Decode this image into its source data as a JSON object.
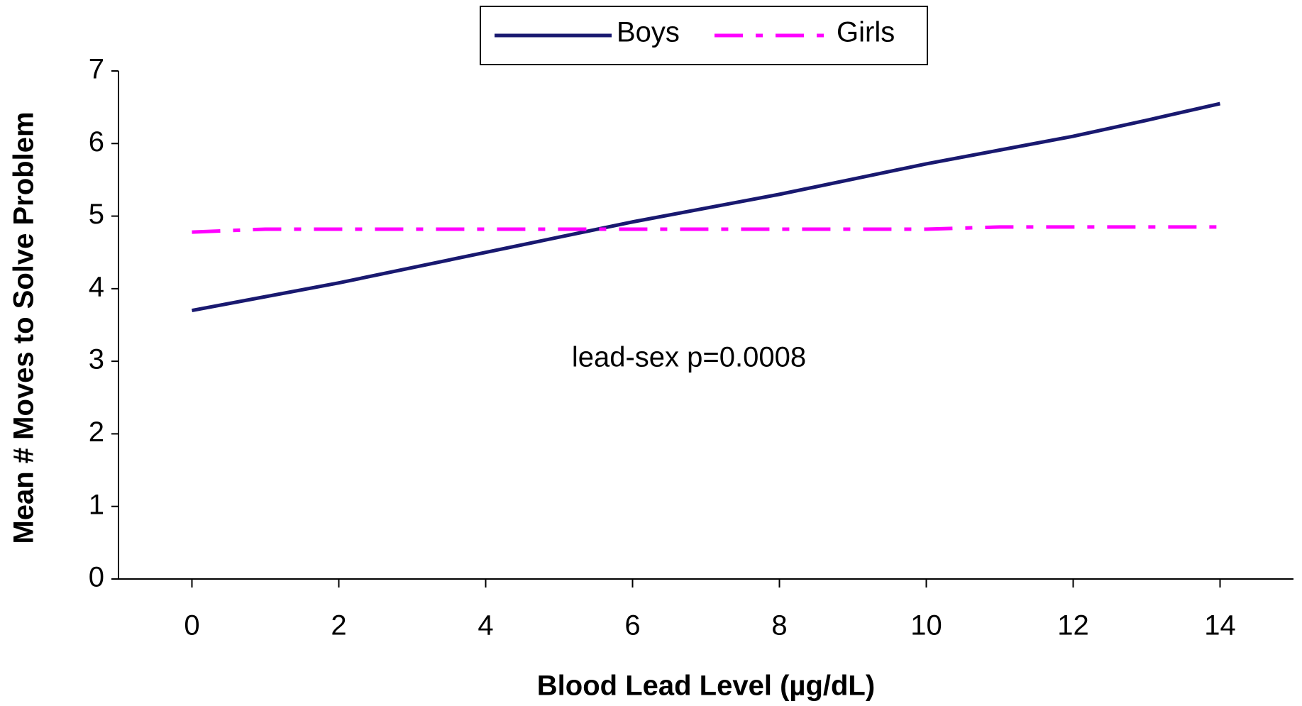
{
  "chart_data": {
    "type": "line",
    "x_label": "Blood Lead Level (µg/dL)",
    "y_label": "Mean # Moves to Solve Problem",
    "annotation": "lead-sex p=0.0008",
    "x": [
      0,
      1,
      2,
      3,
      4,
      5,
      6,
      7,
      8,
      9,
      10,
      11,
      12,
      13,
      14
    ],
    "series": [
      {
        "name": "Boys",
        "color": "#191970",
        "dash": "solid",
        "values": [
          3.7,
          3.89,
          4.08,
          4.29,
          4.5,
          4.71,
          4.92,
          5.11,
          5.3,
          5.51,
          5.72,
          5.91,
          6.1,
          6.32,
          6.55
        ]
      },
      {
        "name": "Girls",
        "color": "#ff00ff",
        "dash": "dashdot",
        "values": [
          4.78,
          4.82,
          4.82,
          4.82,
          4.82,
          4.82,
          4.82,
          4.82,
          4.82,
          4.82,
          4.82,
          4.85,
          4.85,
          4.85,
          4.85
        ]
      }
    ],
    "xlim": [
      -1,
      15
    ],
    "xticks": [
      0,
      2,
      4,
      6,
      8,
      10,
      12,
      14
    ],
    "ylim": [
      0,
      7
    ],
    "yticks": [
      0,
      1,
      2,
      3,
      4,
      5,
      6,
      7
    ],
    "grid": false,
    "legend": "top"
  }
}
